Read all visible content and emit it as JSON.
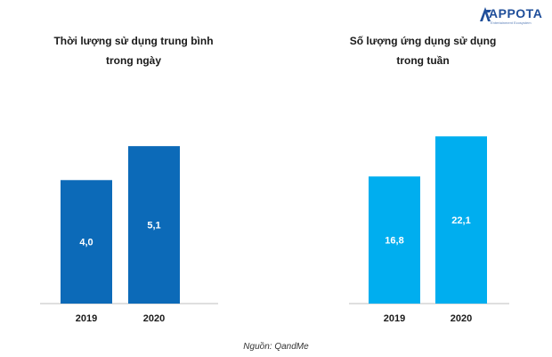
{
  "logo": {
    "text": "APPOTA",
    "tagline": "Entertainment Ecosystem",
    "color": "#1f4e9a"
  },
  "source_note": "Nguồn: QandMe",
  "chart_data": [
    {
      "type": "bar",
      "title_lines": [
        "Thời lượng sử dụng trung bình",
        "trong ngày"
      ],
      "categories": [
        "2019",
        "2020"
      ],
      "values": [
        4.0,
        5.1
      ],
      "value_labels": [
        "4,0",
        "5,1"
      ],
      "ylim": [
        0,
        6.2
      ],
      "color": "#0c6ab8",
      "grid": false,
      "legend": "none"
    },
    {
      "type": "bar",
      "title_lines": [
        "Số lượng ứng dụng sử dụng",
        "trong tuần"
      ],
      "categories": [
        "2019",
        "2020"
      ],
      "values": [
        16.8,
        22.1
      ],
      "value_labels": [
        "16,8",
        "22,1"
      ],
      "ylim": [
        0,
        25.3
      ],
      "color": "#00aeef",
      "grid": false,
      "legend": "none"
    }
  ]
}
